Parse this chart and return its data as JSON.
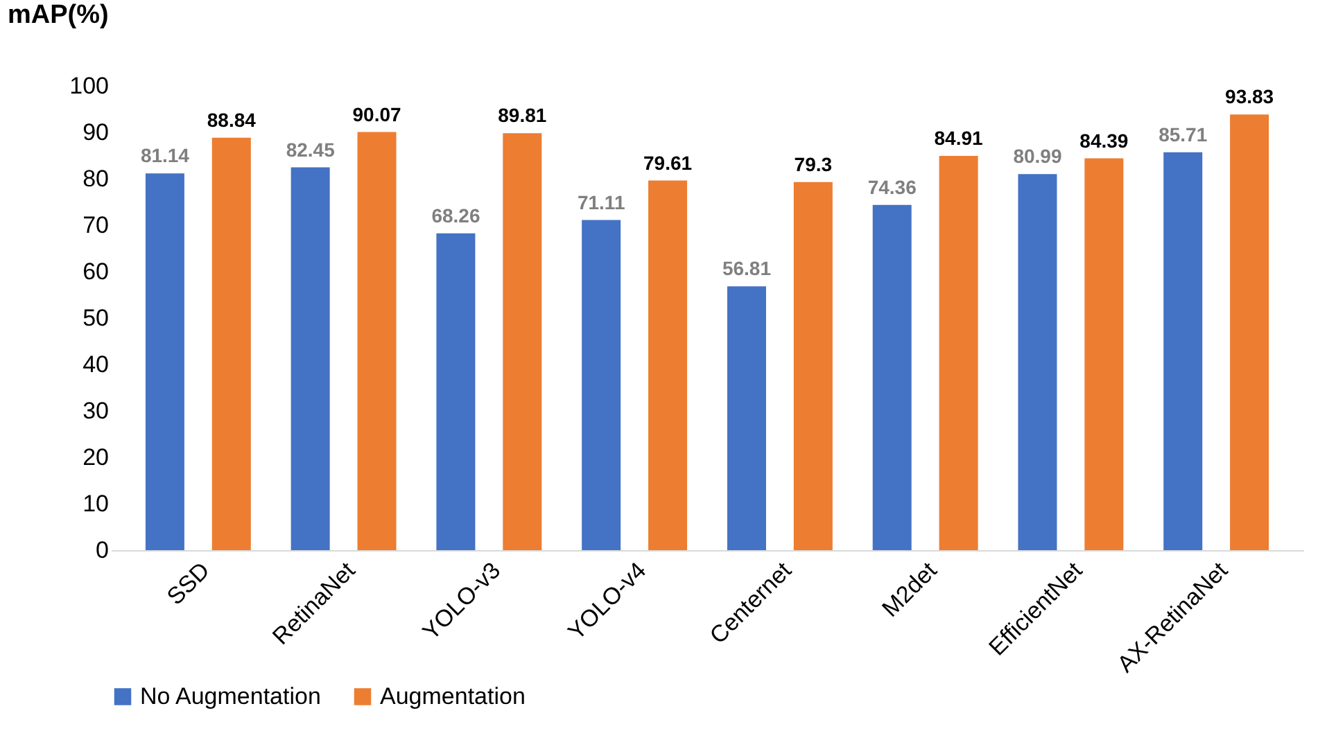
{
  "chart_data": {
    "type": "bar",
    "ylabel": "mAP(%)",
    "categories": [
      "SSD",
      "RetinaNet",
      "YOLO-v3",
      "YOLO-v4",
      "Centernet",
      "M2det",
      "EfficientNet",
      "AX-RetinaNet"
    ],
    "series": [
      {
        "name": "No Augmentation",
        "color": "#4472c4",
        "values": [
          81.14,
          82.45,
          68.26,
          71.11,
          56.81,
          74.36,
          80.99,
          85.71
        ]
      },
      {
        "name": "Augmentation",
        "color": "#ed7d31",
        "values": [
          88.84,
          90.07,
          89.81,
          79.61,
          79.3,
          84.91,
          84.39,
          93.83
        ]
      }
    ],
    "ylim": [
      0,
      100
    ],
    "yticks": [
      0,
      10,
      20,
      30,
      40,
      50,
      60,
      70,
      80,
      90,
      100
    ],
    "data_labels": true,
    "legend": "bottom",
    "grid": false
  }
}
